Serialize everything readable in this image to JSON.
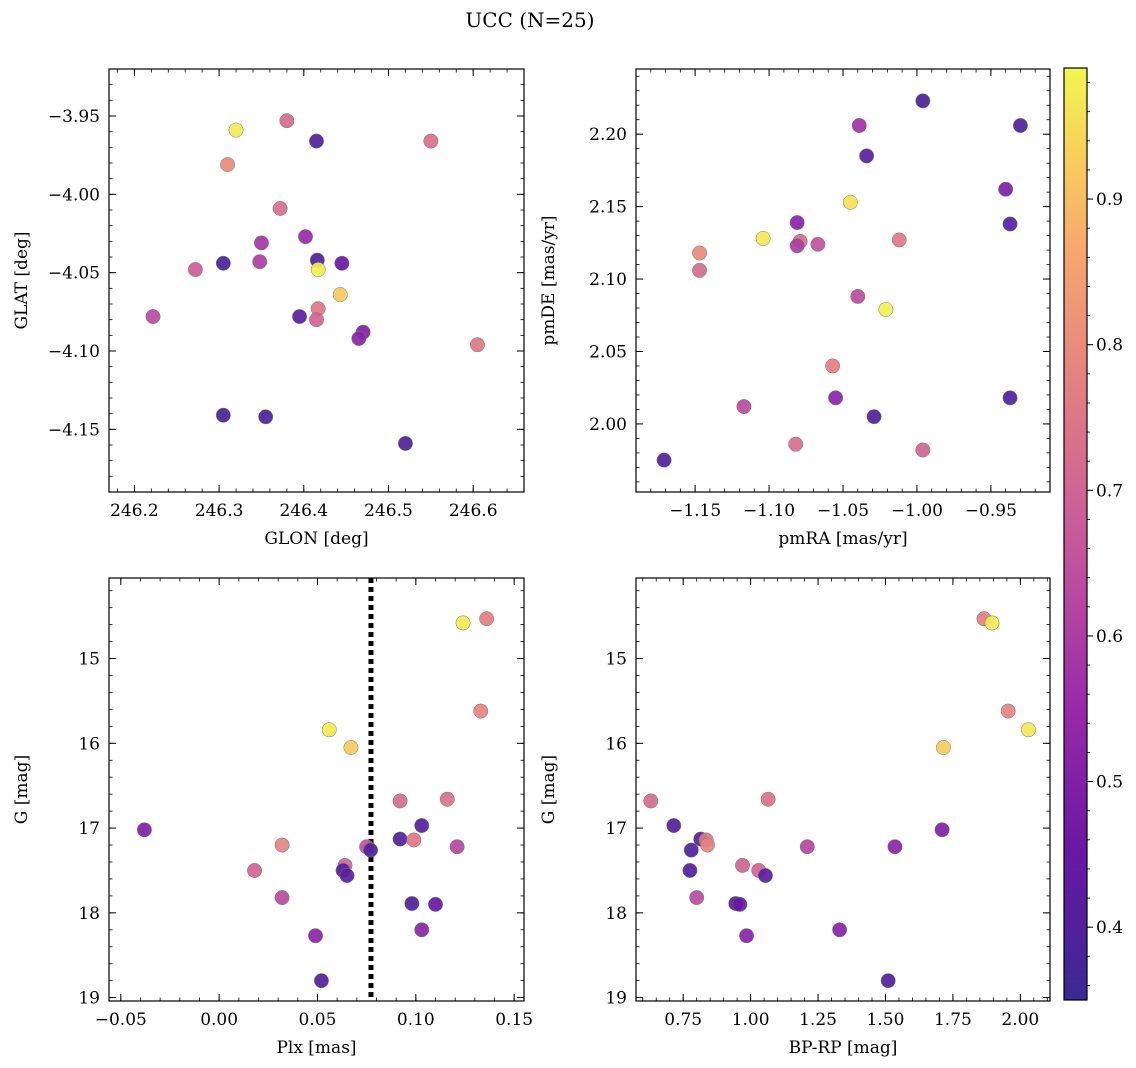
{
  "title": "UCC (N=25)",
  "colorbar": {
    "colormap": "plasma",
    "vmin": 0.35,
    "vmax": 0.99,
    "ticks": [
      0.4,
      0.5,
      0.6,
      0.7,
      0.8,
      0.9
    ],
    "tick_labels": [
      "0.4",
      "0.5",
      "0.6",
      "0.7",
      "0.8",
      "0.9"
    ]
  },
  "chart_data": [
    {
      "type": "scatter",
      "name": "sky",
      "xlabel": "GLON [deg]",
      "ylabel": "GLAT [deg]",
      "xlim": [
        246.17,
        246.66
      ],
      "ylim": [
        -4.19,
        -3.92
      ],
      "xticks": [
        246.2,
        246.3,
        246.4,
        246.5,
        246.6
      ],
      "xtick_labels": [
        "246.2",
        "246.3",
        "246.4",
        "246.5",
        "246.6"
      ],
      "yticks": [
        -3.95,
        -4.0,
        -4.05,
        -4.1,
        -4.15
      ],
      "ytick_labels": [
        "−3.95",
        "−4.00",
        "−4.05",
        "−4.10",
        "−4.15"
      ],
      "points": [
        {
          "x": 246.32,
          "y": -3.959,
          "c": 0.97
        },
        {
          "x": 246.38,
          "y": -3.953,
          "c": 0.72
        },
        {
          "x": 246.415,
          "y": -3.966,
          "c": 0.4
        },
        {
          "x": 246.55,
          "y": -3.966,
          "c": 0.73
        },
        {
          "x": 246.31,
          "y": -3.981,
          "c": 0.8
        },
        {
          "x": 246.372,
          "y": -4.009,
          "c": 0.73
        },
        {
          "x": 246.402,
          "y": -4.027,
          "c": 0.55
        },
        {
          "x": 246.35,
          "y": -4.031,
          "c": 0.58
        },
        {
          "x": 246.305,
          "y": -4.044,
          "c": 0.37
        },
        {
          "x": 246.348,
          "y": -4.043,
          "c": 0.6
        },
        {
          "x": 246.416,
          "y": -4.042,
          "c": 0.4
        },
        {
          "x": 246.445,
          "y": -4.044,
          "c": 0.45
        },
        {
          "x": 246.272,
          "y": -4.048,
          "c": 0.68
        },
        {
          "x": 246.417,
          "y": -4.048,
          "c": 0.98
        },
        {
          "x": 246.443,
          "y": -4.064,
          "c": 0.92
        },
        {
          "x": 246.417,
          "y": -4.073,
          "c": 0.75
        },
        {
          "x": 246.222,
          "y": -4.078,
          "c": 0.63
        },
        {
          "x": 246.395,
          "y": -4.078,
          "c": 0.42
        },
        {
          "x": 246.415,
          "y": -4.08,
          "c": 0.7
        },
        {
          "x": 246.47,
          "y": -4.088,
          "c": 0.5
        },
        {
          "x": 246.465,
          "y": -4.092,
          "c": 0.52
        },
        {
          "x": 246.605,
          "y": -4.096,
          "c": 0.76
        },
        {
          "x": 246.305,
          "y": -4.141,
          "c": 0.38
        },
        {
          "x": 246.355,
          "y": -4.142,
          "c": 0.38
        },
        {
          "x": 246.52,
          "y": -4.159,
          "c": 0.39
        }
      ]
    },
    {
      "type": "scatter",
      "name": "pm",
      "xlabel": "pmRA [mas/yr]",
      "ylabel": "pmDE [mas/yr]",
      "xlim": [
        -1.19,
        -0.91
      ],
      "ylim": [
        1.953,
        2.245
      ],
      "xticks": [
        -1.15,
        -1.1,
        -1.05,
        -1.0,
        -0.95
      ],
      "xtick_labels": [
        "−1.15",
        "−1.10",
        "−1.05",
        "−1.00",
        "−0.95"
      ],
      "yticks": [
        2.0,
        2.05,
        2.1,
        2.15,
        2.2
      ],
      "ytick_labels": [
        "2.00",
        "2.05",
        "2.10",
        "2.15",
        "2.20"
      ],
      "points": [
        {
          "x": -0.996,
          "y": 2.223,
          "c": 0.38
        },
        {
          "x": -0.93,
          "y": 2.206,
          "c": 0.4
        },
        {
          "x": -1.039,
          "y": 2.206,
          "c": 0.57
        },
        {
          "x": -1.034,
          "y": 2.185,
          "c": 0.42
        },
        {
          "x": -0.94,
          "y": 2.162,
          "c": 0.5
        },
        {
          "x": -1.045,
          "y": 2.153,
          "c": 0.96
        },
        {
          "x": -1.081,
          "y": 2.139,
          "c": 0.52
        },
        {
          "x": -0.937,
          "y": 2.138,
          "c": 0.41
        },
        {
          "x": -1.104,
          "y": 2.128,
          "c": 0.97
        },
        {
          "x": -1.012,
          "y": 2.127,
          "c": 0.75
        },
        {
          "x": -1.079,
          "y": 2.126,
          "c": 0.73
        },
        {
          "x": -1.067,
          "y": 2.124,
          "c": 0.65
        },
        {
          "x": -1.081,
          "y": 2.123,
          "c": 0.6
        },
        {
          "x": -1.147,
          "y": 2.118,
          "c": 0.8
        },
        {
          "x": -1.147,
          "y": 2.106,
          "c": 0.72
        },
        {
          "x": -1.04,
          "y": 2.088,
          "c": 0.63
        },
        {
          "x": -1.021,
          "y": 2.079,
          "c": 0.98
        },
        {
          "x": -1.057,
          "y": 2.04,
          "c": 0.77
        },
        {
          "x": -1.055,
          "y": 2.018,
          "c": 0.52
        },
        {
          "x": -0.937,
          "y": 2.018,
          "c": 0.4
        },
        {
          "x": -1.117,
          "y": 2.012,
          "c": 0.63
        },
        {
          "x": -1.029,
          "y": 2.005,
          "c": 0.4
        },
        {
          "x": -1.082,
          "y": 1.986,
          "c": 0.73
        },
        {
          "x": -0.996,
          "y": 1.982,
          "c": 0.7
        },
        {
          "x": -1.171,
          "y": 1.975,
          "c": 0.4
        }
      ]
    },
    {
      "type": "scatter",
      "name": "plx",
      "xlabel": "Plx [mas]",
      "ylabel": "G [mag]",
      "xlim": [
        -0.056,
        0.155
      ],
      "ylim": [
        19.04,
        14.05
      ],
      "xticks": [
        -0.05,
        0.0,
        0.05,
        0.1,
        0.15
      ],
      "xtick_labels": [
        "−0.05",
        "0.00",
        "0.05",
        "0.10",
        "0.15"
      ],
      "yticks": [
        15,
        16,
        17,
        18,
        19
      ],
      "ytick_labels": [
        "15",
        "16",
        "17",
        "18",
        "19"
      ],
      "vline": {
        "x": 0.0772,
        "style": "dotted"
      },
      "points": [
        {
          "x": 0.136,
          "y": 14.53,
          "c": 0.77
        },
        {
          "x": 0.124,
          "y": 14.58,
          "c": 0.97
        },
        {
          "x": 0.133,
          "y": 15.62,
          "c": 0.78
        },
        {
          "x": 0.056,
          "y": 15.84,
          "c": 0.97
        },
        {
          "x": 0.067,
          "y": 16.05,
          "c": 0.92
        },
        {
          "x": 0.092,
          "y": 16.68,
          "c": 0.72
        },
        {
          "x": 0.116,
          "y": 16.66,
          "c": 0.74
        },
        {
          "x": 0.103,
          "y": 16.97,
          "c": 0.4
        },
        {
          "x": -0.038,
          "y": 17.02,
          "c": 0.5
        },
        {
          "x": 0.092,
          "y": 17.13,
          "c": 0.4
        },
        {
          "x": 0.099,
          "y": 17.14,
          "c": 0.75
        },
        {
          "x": 0.032,
          "y": 17.2,
          "c": 0.78
        },
        {
          "x": 0.121,
          "y": 17.22,
          "c": 0.62
        },
        {
          "x": 0.075,
          "y": 17.22,
          "c": 0.65
        },
        {
          "x": 0.077,
          "y": 17.26,
          "c": 0.4
        },
        {
          "x": 0.064,
          "y": 17.44,
          "c": 0.7
        },
        {
          "x": 0.018,
          "y": 17.5,
          "c": 0.7
        },
        {
          "x": 0.063,
          "y": 17.5,
          "c": 0.4
        },
        {
          "x": 0.065,
          "y": 17.56,
          "c": 0.42
        },
        {
          "x": 0.032,
          "y": 17.82,
          "c": 0.63
        },
        {
          "x": 0.098,
          "y": 17.89,
          "c": 0.4
        },
        {
          "x": 0.11,
          "y": 17.9,
          "c": 0.45
        },
        {
          "x": 0.103,
          "y": 18.2,
          "c": 0.52
        },
        {
          "x": 0.049,
          "y": 18.27,
          "c": 0.52
        },
        {
          "x": 0.052,
          "y": 18.8,
          "c": 0.4
        }
      ]
    },
    {
      "type": "scatter",
      "name": "cmd",
      "xlabel": "BP-RP [mag]",
      "ylabel": "G [mag]",
      "xlim": [
        0.575,
        2.11
      ],
      "ylim": [
        19.04,
        14.05
      ],
      "xticks": [
        0.75,
        1.0,
        1.25,
        1.5,
        1.75,
        2.0
      ],
      "xtick_labels": [
        "0.75",
        "1.00",
        "1.25",
        "1.50",
        "1.75",
        "2.00"
      ],
      "yticks": [
        15,
        16,
        17,
        18,
        19
      ],
      "ytick_labels": [
        "15",
        "16",
        "17",
        "18",
        "19"
      ],
      "points": [
        {
          "x": 1.865,
          "y": 14.53,
          "c": 0.77
        },
        {
          "x": 1.895,
          "y": 14.58,
          "c": 0.97
        },
        {
          "x": 1.955,
          "y": 15.62,
          "c": 0.78
        },
        {
          "x": 2.03,
          "y": 15.84,
          "c": 0.97
        },
        {
          "x": 1.715,
          "y": 16.05,
          "c": 0.92
        },
        {
          "x": 0.63,
          "y": 16.68,
          "c": 0.72
        },
        {
          "x": 1.065,
          "y": 16.66,
          "c": 0.74
        },
        {
          "x": 0.715,
          "y": 16.97,
          "c": 0.4
        },
        {
          "x": 1.71,
          "y": 17.02,
          "c": 0.5
        },
        {
          "x": 0.815,
          "y": 17.13,
          "c": 0.4
        },
        {
          "x": 0.835,
          "y": 17.14,
          "c": 0.75
        },
        {
          "x": 0.84,
          "y": 17.2,
          "c": 0.78
        },
        {
          "x": 1.21,
          "y": 17.22,
          "c": 0.62
        },
        {
          "x": 1.535,
          "y": 17.22,
          "c": 0.52
        },
        {
          "x": 0.78,
          "y": 17.26,
          "c": 0.4
        },
        {
          "x": 0.97,
          "y": 17.44,
          "c": 0.7
        },
        {
          "x": 1.03,
          "y": 17.5,
          "c": 0.7
        },
        {
          "x": 0.775,
          "y": 17.5,
          "c": 0.4
        },
        {
          "x": 1.055,
          "y": 17.56,
          "c": 0.42
        },
        {
          "x": 0.8,
          "y": 17.82,
          "c": 0.63
        },
        {
          "x": 0.945,
          "y": 17.89,
          "c": 0.4
        },
        {
          "x": 0.96,
          "y": 17.9,
          "c": 0.45
        },
        {
          "x": 1.33,
          "y": 18.2,
          "c": 0.52
        },
        {
          "x": 0.985,
          "y": 18.27,
          "c": 0.52
        },
        {
          "x": 1.51,
          "y": 18.8,
          "c": 0.4
        }
      ]
    }
  ]
}
